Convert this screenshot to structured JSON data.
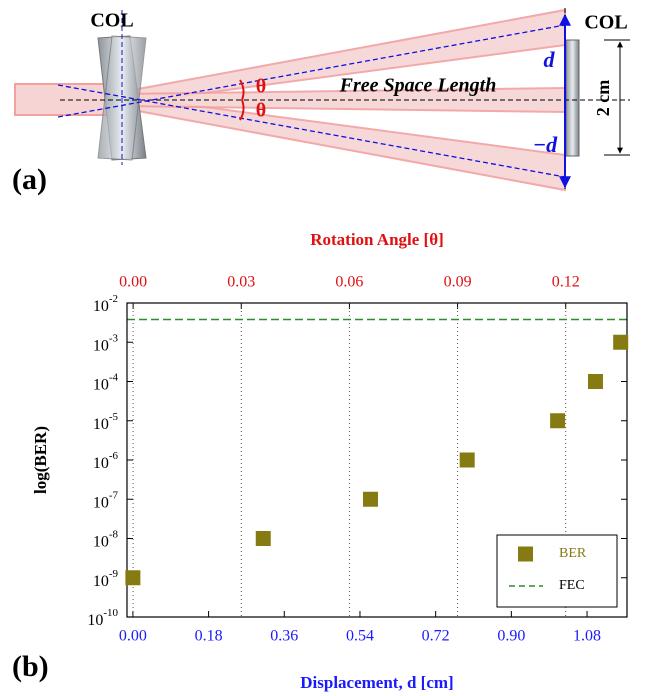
{
  "diagram": {
    "left_label": "COL",
    "right_label": "COL",
    "length_label": "Free Space Length",
    "up_label": "d",
    "down_label": "−d",
    "angle_up": "θ",
    "angle_down": "θ",
    "size_label": "2 cm",
    "panel_label": "(a)"
  },
  "panel_label_b": "(b)",
  "chart_data": {
    "type": "scatter",
    "xlabel": "Displacement, d [cm]",
    "x2label": "Rotation Angle [θ]",
    "ylabel": "log(BER)",
    "xlim": [
      -0.014,
      1.175
    ],
    "xticks": [
      {
        "value": 0,
        "label": "0.00"
      },
      0.18,
      0.36,
      0.54,
      0.72,
      {
        "value": 0.9,
        "label": "0.90"
      },
      1.08
    ],
    "x2lim": [
      -0.0017,
      0.137
    ],
    "x2ticks": [
      {
        "value": 0,
        "label": "0.00"
      },
      0.03,
      0.06,
      0.09,
      0.12
    ],
    "ylog": true,
    "ylim": [
      1e-10,
      0.01
    ],
    "yticks": [
      {
        "value": 1e-10,
        "label": "10",
        "exponent": "-10"
      },
      {
        "value": 1e-09,
        "label": "10",
        "exponent": "-9"
      },
      {
        "value": 1e-08,
        "label": "10",
        "exponent": "-8"
      },
      {
        "value": 1e-07,
        "label": "10",
        "exponent": "-7"
      },
      {
        "value": 1e-06,
        "label": "10",
        "exponent": "-6"
      },
      {
        "value": 1e-05,
        "label": "10",
        "exponent": "-5"
      },
      {
        "value": 0.0001,
        "label": "10",
        "exponent": "-4"
      },
      {
        "value": 0.001,
        "label": "10",
        "exponent": "-3"
      },
      {
        "value": 0.01,
        "label": "10",
        "exponent": "-2"
      }
    ],
    "grid": "x2",
    "series": [
      {
        "name": "BER",
        "color": "#857b12",
        "x": [
          0,
          0.31,
          0.565,
          0.795,
          1.01,
          1.1,
          1.16
        ],
        "values": [
          1e-09,
          1e-08,
          1e-07,
          1e-06,
          1e-05,
          0.0001,
          0.001
        ]
      }
    ],
    "hline": {
      "name": "FEC",
      "value": 0.0038,
      "color": "#2e8b2e"
    },
    "legend": "lower right",
    "xcolor": "#1a1aff",
    "x2color": "#e01010"
  }
}
